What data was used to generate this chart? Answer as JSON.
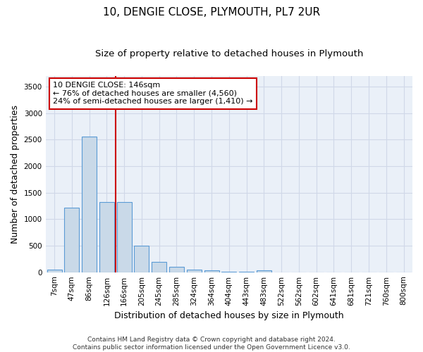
{
  "title": "10, DENGIE CLOSE, PLYMOUTH, PL7 2UR",
  "subtitle": "Size of property relative to detached houses in Plymouth",
  "xlabel": "Distribution of detached houses by size in Plymouth",
  "ylabel": "Number of detached properties",
  "bar_color": "#c9d9e8",
  "bar_edge_color": "#5b9bd5",
  "grid_color": "#d0d8e8",
  "background_color": "#eaf0f8",
  "annotation_box_color": "#cc0000",
  "vline_color": "#cc0000",
  "categories": [
    "7sqm",
    "47sqm",
    "86sqm",
    "126sqm",
    "166sqm",
    "205sqm",
    "245sqm",
    "285sqm",
    "324sqm",
    "364sqm",
    "404sqm",
    "443sqm",
    "483sqm",
    "522sqm",
    "562sqm",
    "602sqm",
    "641sqm",
    "681sqm",
    "721sqm",
    "760sqm",
    "800sqm"
  ],
  "values": [
    50,
    1215,
    2555,
    1325,
    1320,
    495,
    195,
    105,
    50,
    30,
    10,
    5,
    30,
    0,
    0,
    0,
    0,
    0,
    0,
    0,
    0
  ],
  "vline_position": 3.5,
  "annotation_text": "10 DENGIE CLOSE: 146sqm\n← 76% of detached houses are smaller (4,560)\n24% of semi-detached houses are larger (1,410) →",
  "ylim": [
    0,
    3700
  ],
  "yticks": [
    0,
    500,
    1000,
    1500,
    2000,
    2500,
    3000,
    3500
  ],
  "footnote": "Contains HM Land Registry data © Crown copyright and database right 2024.\nContains public sector information licensed under the Open Government Licence v3.0.",
  "title_fontsize": 11,
  "subtitle_fontsize": 9.5,
  "label_fontsize": 9,
  "tick_fontsize": 7.5,
  "annot_fontsize": 8,
  "footnote_fontsize": 6.5
}
